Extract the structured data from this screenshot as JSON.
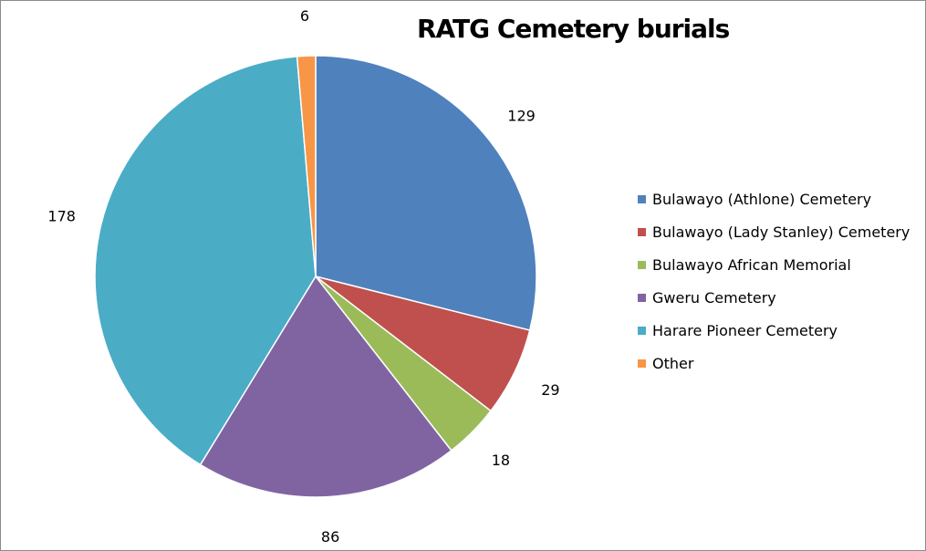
{
  "chart_data": {
    "type": "pie",
    "title": "RATG Cemetery burials",
    "categories": [
      "Bulawayo (Athlone) Cemetery",
      "Bulawayo (Lady Stanley) Cemetery",
      "Bulawayo African Memorial",
      "Gweru Cemetery",
      "Harare Pioneer Cemetery",
      "Other"
    ],
    "values": [
      129,
      29,
      18,
      86,
      178,
      6
    ],
    "data_labels": [
      "129",
      "29",
      "18",
      "86",
      "178",
      "6"
    ],
    "colors": [
      "#4f81bd",
      "#c0504d",
      "#9bbb59",
      "#8064a2",
      "#4bacc6",
      "#f79646"
    ],
    "legend_position": "right",
    "start_angle": "top, clockwise"
  }
}
